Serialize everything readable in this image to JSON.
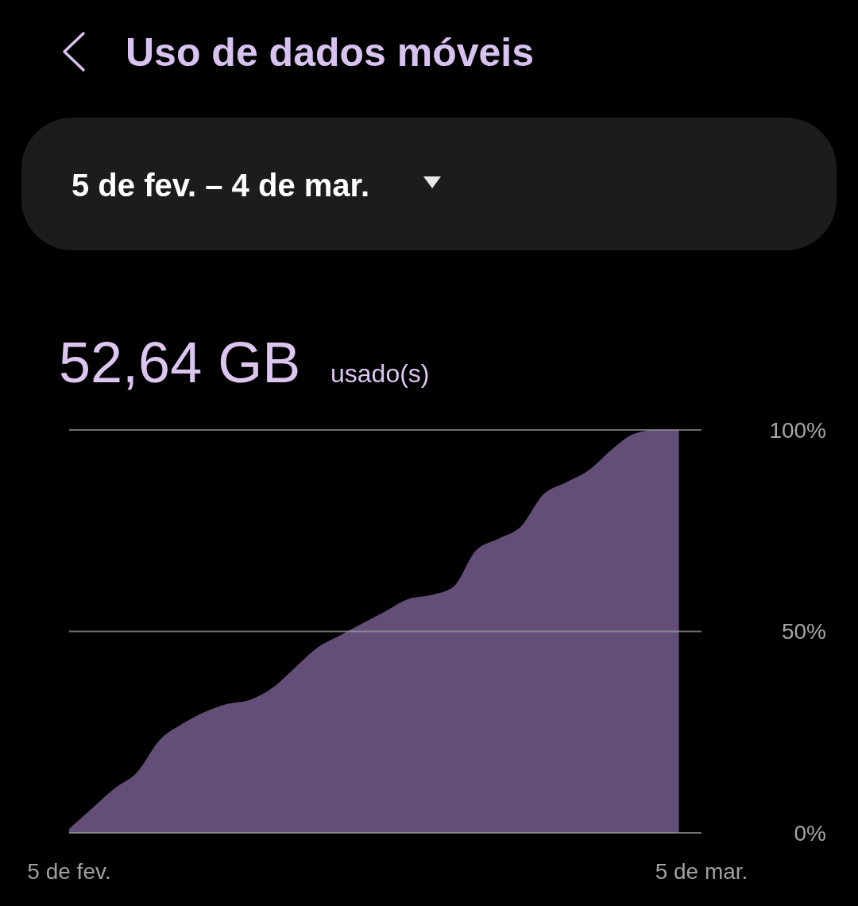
{
  "chart_data": {
    "type": "area",
    "title": "Uso de dados móveis",
    "subtitle": "5 de fev. – 4 de mar.",
    "annotations": [
      "52,64 GB",
      "usado(s)"
    ],
    "x": [
      "--02-05",
      "--02-06",
      "--02-07",
      "--02-08",
      "--02-09",
      "--02-10",
      "--02-11",
      "--02-12",
      "--02-13",
      "--02-14",
      "--02-15",
      "--02-16",
      "--02-17",
      "--02-18",
      "--02-19",
      "--02-20",
      "--02-21",
      "--02-22",
      "--02-23",
      "--02-24",
      "--02-25",
      "--02-26",
      "--02-27",
      "--02-28",
      "--03-01",
      "--03-02",
      "--03-03",
      "--03-04"
    ],
    "series": [
      {
        "color": "#634e78",
        "values": [
          1,
          6,
          11,
          15,
          23,
          27,
          30,
          32,
          33,
          36,
          41,
          46,
          49,
          52,
          55,
          58,
          59,
          61,
          70,
          73,
          76,
          84,
          87,
          90,
          95,
          99,
          100,
          100
        ]
      }
    ],
    "xlim": [
      "--02-05",
      "--03-05"
    ],
    "xticks": [
      {
        "value": "--02-05",
        "label": "5 de fev."
      },
      {
        "value": "--03-05",
        "label": "5 de mar."
      }
    ],
    "ylim": [
      0,
      100
    ],
    "yticks": [
      {
        "value": 0,
        "label": "0%"
      },
      {
        "value": 50,
        "label": "50%"
      },
      {
        "value": 100,
        "label": "100%"
      }
    ],
    "grid": "y"
  }
}
